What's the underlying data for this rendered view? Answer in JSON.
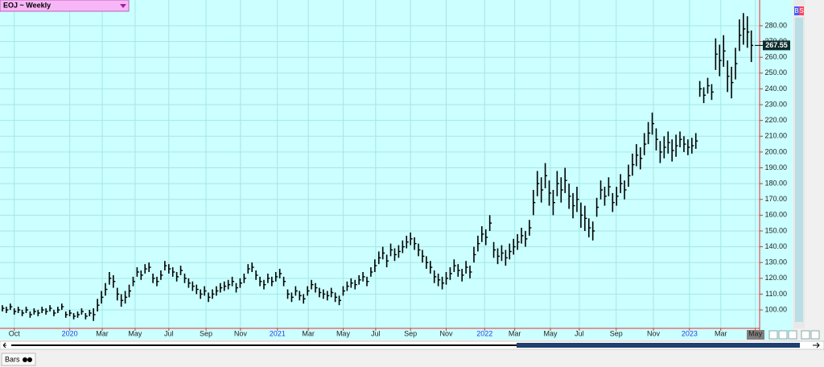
{
  "chart_data": {
    "type": "hlc",
    "title": "EOJ ~ Weekly",
    "mode_label": "Bars",
    "badges": [
      "B",
      "S"
    ],
    "color": "#000000",
    "grid": true,
    "last_price": 267.55,
    "xlim": [
      -0.6,
      191.1
    ],
    "ylim": [
      88.3,
      296.3
    ],
    "xticks": [
      {
        "value": 3,
        "label": "Oct"
      },
      {
        "value": 17,
        "label": "2020"
      },
      {
        "value": 25.2,
        "label": "Mar"
      },
      {
        "value": 33.5,
        "label": "May"
      },
      {
        "value": 42,
        "label": "Jul"
      },
      {
        "value": 51.4,
        "label": "Sep"
      },
      {
        "value": 60.1,
        "label": "Nov"
      },
      {
        "value": 69.4,
        "label": "2021"
      },
      {
        "value": 77.2,
        "label": "Mar"
      },
      {
        "value": 86,
        "label": "May"
      },
      {
        "value": 94.2,
        "label": "Jul"
      },
      {
        "value": 103,
        "label": "Sep"
      },
      {
        "value": 112,
        "label": "Nov"
      },
      {
        "value": 121.7,
        "label": "2022"
      },
      {
        "value": 129.3,
        "label": "Mar"
      },
      {
        "value": 138.3,
        "label": "May"
      },
      {
        "value": 145.6,
        "label": "Jul"
      },
      {
        "value": 154.9,
        "label": "Sep"
      },
      {
        "value": 164.3,
        "label": "Nov"
      },
      {
        "value": 173.4,
        "label": "2023"
      },
      {
        "value": 181.3,
        "label": "Mar"
      },
      {
        "value": 190,
        "label": "May"
      }
    ],
    "yticks": [
      {
        "value": 100,
        "label": "100.00"
      },
      {
        "value": 110,
        "label": "110.00"
      },
      {
        "value": 120,
        "label": "120.00"
      },
      {
        "value": 130,
        "label": "130.00"
      },
      {
        "value": 140,
        "label": "140.00"
      },
      {
        "value": 150,
        "label": "150.00"
      },
      {
        "value": 160,
        "label": "160.00"
      },
      {
        "value": 170,
        "label": "170.00"
      },
      {
        "value": 180,
        "label": "180.00"
      },
      {
        "value": 190,
        "label": "190.00"
      },
      {
        "value": 200,
        "label": "200.00"
      },
      {
        "value": 210,
        "label": "210.00"
      },
      {
        "value": 220,
        "label": "220.00"
      },
      {
        "value": 230,
        "label": "230.00"
      },
      {
        "value": 240,
        "label": "240.00"
      },
      {
        "value": 250,
        "label": "250.00"
      },
      {
        "value": 260,
        "label": "260.00"
      },
      {
        "value": 270,
        "label": "270.00"
      },
      {
        "value": 280,
        "label": "280.00"
      }
    ],
    "close": [
      101,
      100,
      102,
      99,
      100,
      98,
      100,
      97,
      99,
      98,
      100,
      99,
      101,
      98,
      100,
      102,
      97,
      98,
      96,
      97,
      99,
      96,
      98,
      97,
      103,
      108,
      113,
      120,
      118,
      110,
      106,
      108,
      112,
      118,
      124,
      122,
      126,
      127,
      120,
      118,
      122,
      128,
      126,
      124,
      121,
      125,
      120,
      117,
      115,
      113,
      110,
      112,
      108,
      110,
      112,
      114,
      115,
      116,
      118,
      114,
      117,
      120,
      126,
      127,
      122,
      118,
      116,
      120,
      118,
      121,
      123,
      118,
      110,
      108,
      112,
      109,
      107,
      112,
      116,
      114,
      111,
      110,
      109,
      111,
      108,
      106,
      112,
      115,
      117,
      116,
      119,
      121,
      118,
      124,
      128,
      133,
      136,
      131,
      138,
      135,
      137,
      140,
      143,
      145,
      142,
      138,
      134,
      130,
      127,
      121,
      119,
      117,
      120,
      123,
      128,
      125,
      122,
      127,
      124,
      135,
      142,
      148,
      146,
      155,
      138,
      134,
      136,
      133,
      137,
      140,
      143,
      147,
      145,
      152,
      168,
      180,
      176,
      185,
      174,
      168,
      180,
      176,
      182,
      172,
      166,
      170,
      160,
      158,
      152,
      150,
      165,
      176,
      172,
      178,
      168,
      172,
      180,
      176,
      185,
      192,
      198,
      196,
      205,
      212,
      218,
      208,
      200,
      203,
      206,
      201,
      204,
      208,
      205,
      203,
      204,
      207,
      240,
      236,
      242,
      238,
      262,
      258,
      264,
      248,
      244,
      256,
      274,
      278,
      276,
      267.55
    ],
    "high": [
      103,
      102,
      104,
      101,
      102,
      100,
      102,
      99,
      101,
      100,
      102,
      101,
      103,
      100,
      102,
      104,
      99,
      100,
      98,
      99,
      101,
      98,
      100,
      101,
      107,
      112,
      117,
      124,
      122,
      114,
      110,
      112,
      116,
      121,
      127,
      125,
      129,
      130,
      123,
      121,
      125,
      131,
      129,
      127,
      124,
      128,
      123,
      120,
      118,
      116,
      113,
      115,
      111,
      113,
      115,
      117,
      118,
      119,
      121,
      117,
      120,
      123,
      129,
      130,
      125,
      121,
      119,
      123,
      121,
      124,
      126,
      121,
      113,
      111,
      115,
      112,
      110,
      115,
      119,
      117,
      114,
      113,
      112,
      114,
      111,
      109,
      115,
      118,
      120,
      119,
      122,
      124,
      121,
      127,
      132,
      137,
      140,
      135,
      142,
      139,
      141,
      144,
      147,
      149,
      146,
      142,
      138,
      134,
      131,
      125,
      123,
      121,
      124,
      127,
      132,
      129,
      126,
      131,
      128,
      140,
      147,
      153,
      151,
      160,
      143,
      139,
      141,
      138,
      142,
      145,
      148,
      152,
      150,
      157,
      176,
      188,
      184,
      193,
      182,
      176,
      188,
      184,
      190,
      180,
      174,
      178,
      168,
      166,
      158,
      156,
      171,
      182,
      178,
      184,
      174,
      178,
      186,
      182,
      192,
      199,
      205,
      203,
      212,
      219,
      225,
      215,
      207,
      210,
      213,
      208,
      211,
      213,
      210,
      208,
      209,
      212,
      245,
      241,
      247,
      243,
      272,
      268,
      274,
      258,
      254,
      266,
      284,
      288,
      286,
      277
    ],
    "low": [
      99,
      98,
      100,
      97,
      98,
      96,
      98,
      95,
      97,
      96,
      98,
      97,
      99,
      96,
      98,
      100,
      95,
      96,
      94,
      95,
      97,
      94,
      96,
      93,
      99,
      104,
      109,
      116,
      114,
      106,
      102,
      104,
      108,
      115,
      121,
      119,
      123,
      124,
      117,
      115,
      119,
      125,
      123,
      121,
      118,
      122,
      117,
      114,
      112,
      110,
      107,
      109,
      105,
      107,
      109,
      111,
      112,
      113,
      115,
      111,
      114,
      117,
      123,
      124,
      119,
      115,
      113,
      117,
      115,
      118,
      120,
      115,
      107,
      105,
      109,
      106,
      104,
      109,
      113,
      111,
      108,
      107,
      106,
      108,
      105,
      103,
      109,
      112,
      114,
      113,
      116,
      118,
      115,
      121,
      124,
      129,
      132,
      127,
      134,
      131,
      133,
      136,
      139,
      141,
      138,
      134,
      130,
      126,
      123,
      117,
      115,
      113,
      116,
      119,
      124,
      121,
      118,
      123,
      120,
      130,
      137,
      143,
      141,
      150,
      133,
      129,
      131,
      128,
      132,
      135,
      138,
      142,
      140,
      147,
      160,
      172,
      168,
      177,
      166,
      160,
      172,
      168,
      174,
      164,
      158,
      162,
      152,
      150,
      146,
      144,
      159,
      170,
      166,
      172,
      162,
      166,
      174,
      170,
      178,
      185,
      191,
      189,
      198,
      205,
      211,
      201,
      193,
      196,
      199,
      194,
      197,
      203,
      200,
      198,
      199,
      202,
      235,
      231,
      237,
      233,
      252,
      248,
      254,
      238,
      234,
      246,
      264,
      268,
      266,
      257
    ]
  }
}
